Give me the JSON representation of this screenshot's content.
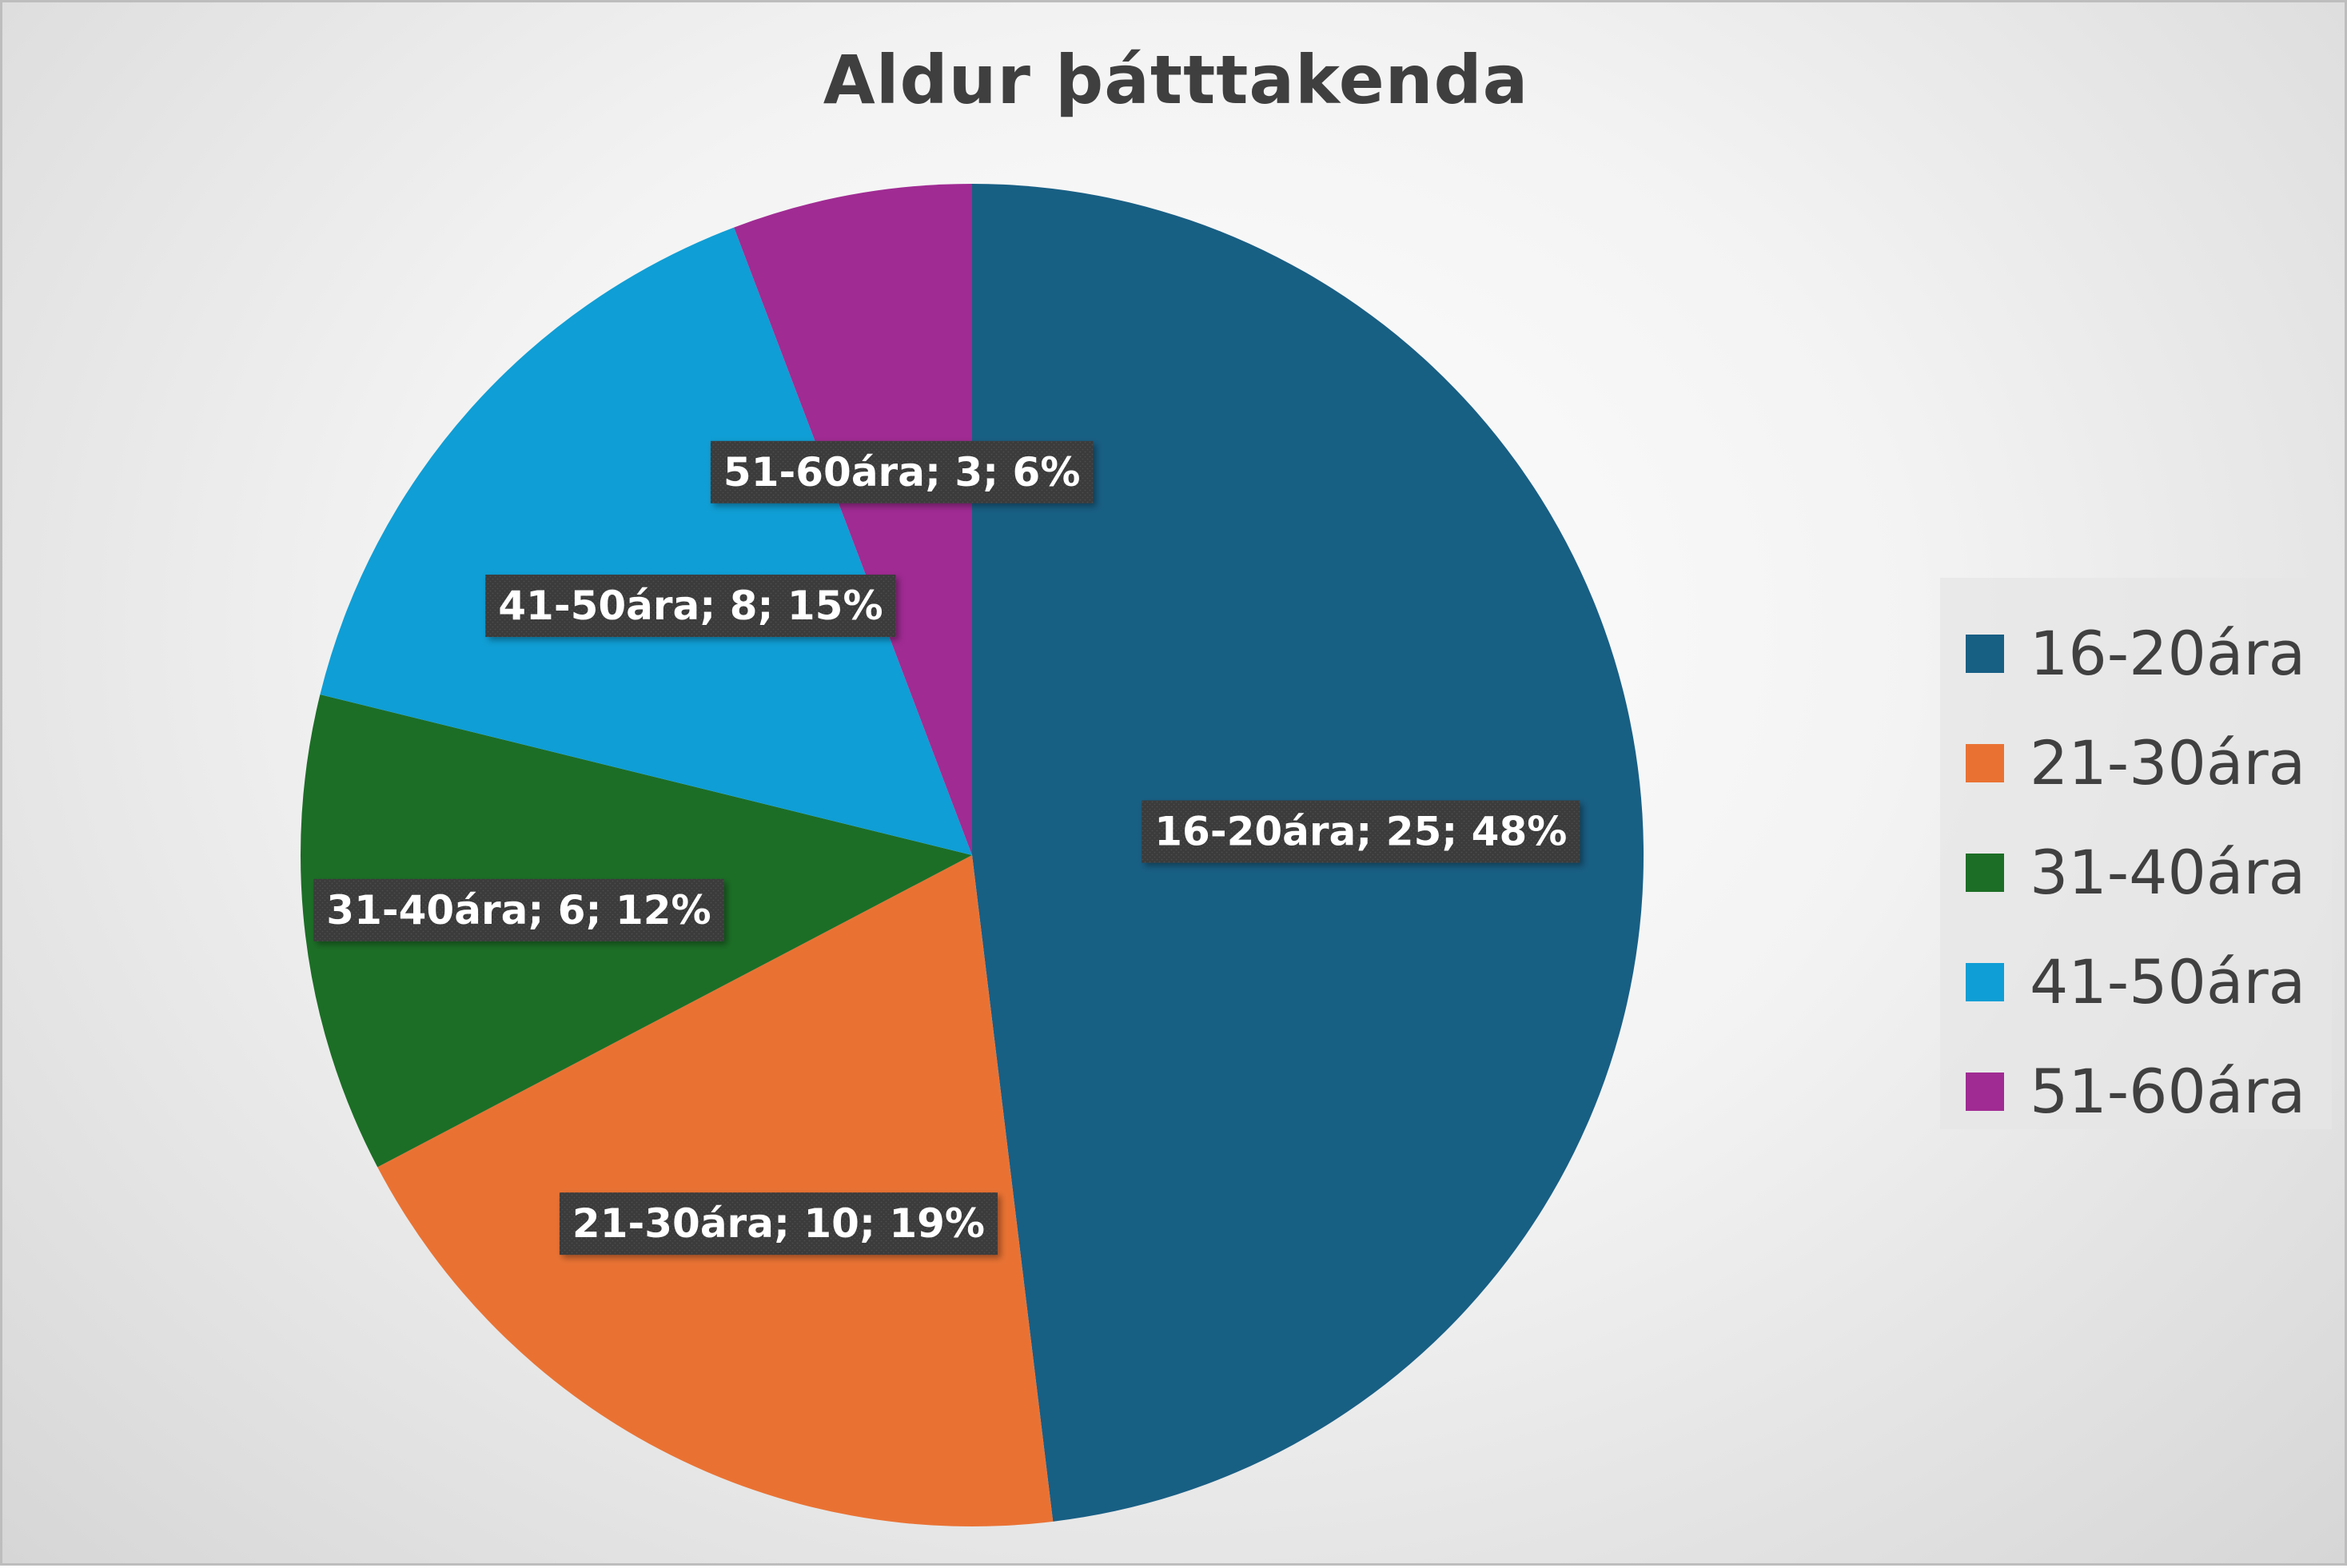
{
  "chart_data": {
    "type": "pie",
    "title": "Aldur þátttakenda",
    "categories": [
      "16-20ára",
      "21-30ára",
      "31-40ára",
      "41-50ára",
      "51-60ára"
    ],
    "values": [
      25,
      10,
      6,
      8,
      3
    ],
    "percents": [
      48,
      19,
      12,
      15,
      6
    ],
    "colors": [
      "#185F84",
      "#E97233",
      "#1C6E26",
      "#0F9ED5",
      "#A02B93"
    ],
    "data_labels": [
      "16-20ára; 25; 48%",
      "21-30ára; 10; 19%",
      "31-40ára; 6; 12%",
      "41-50ára; 8; 15%",
      "51-60ára; 3; 6%"
    ],
    "start_angle": "12 o'clock",
    "direction": "clockwise",
    "legend_position": "right"
  }
}
